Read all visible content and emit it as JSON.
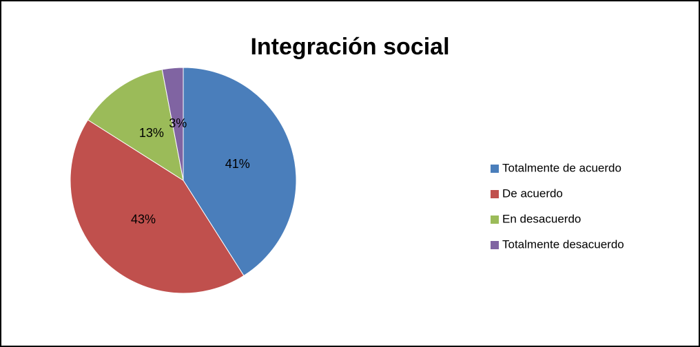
{
  "chart_data": {
    "type": "pie",
    "title": "Integración social",
    "categories": [
      "Totalmente de acuerdo",
      "De acuerdo",
      "En desacuerdo",
      "Totalmente desacuerdo"
    ],
    "values": [
      41,
      43,
      13,
      3
    ],
    "value_labels": [
      "41%",
      "43%",
      "13%",
      "3%"
    ],
    "colors": [
      "#4a7ebb",
      "#c0504d",
      "#9bbb59",
      "#8064a2"
    ],
    "legend": "right"
  }
}
